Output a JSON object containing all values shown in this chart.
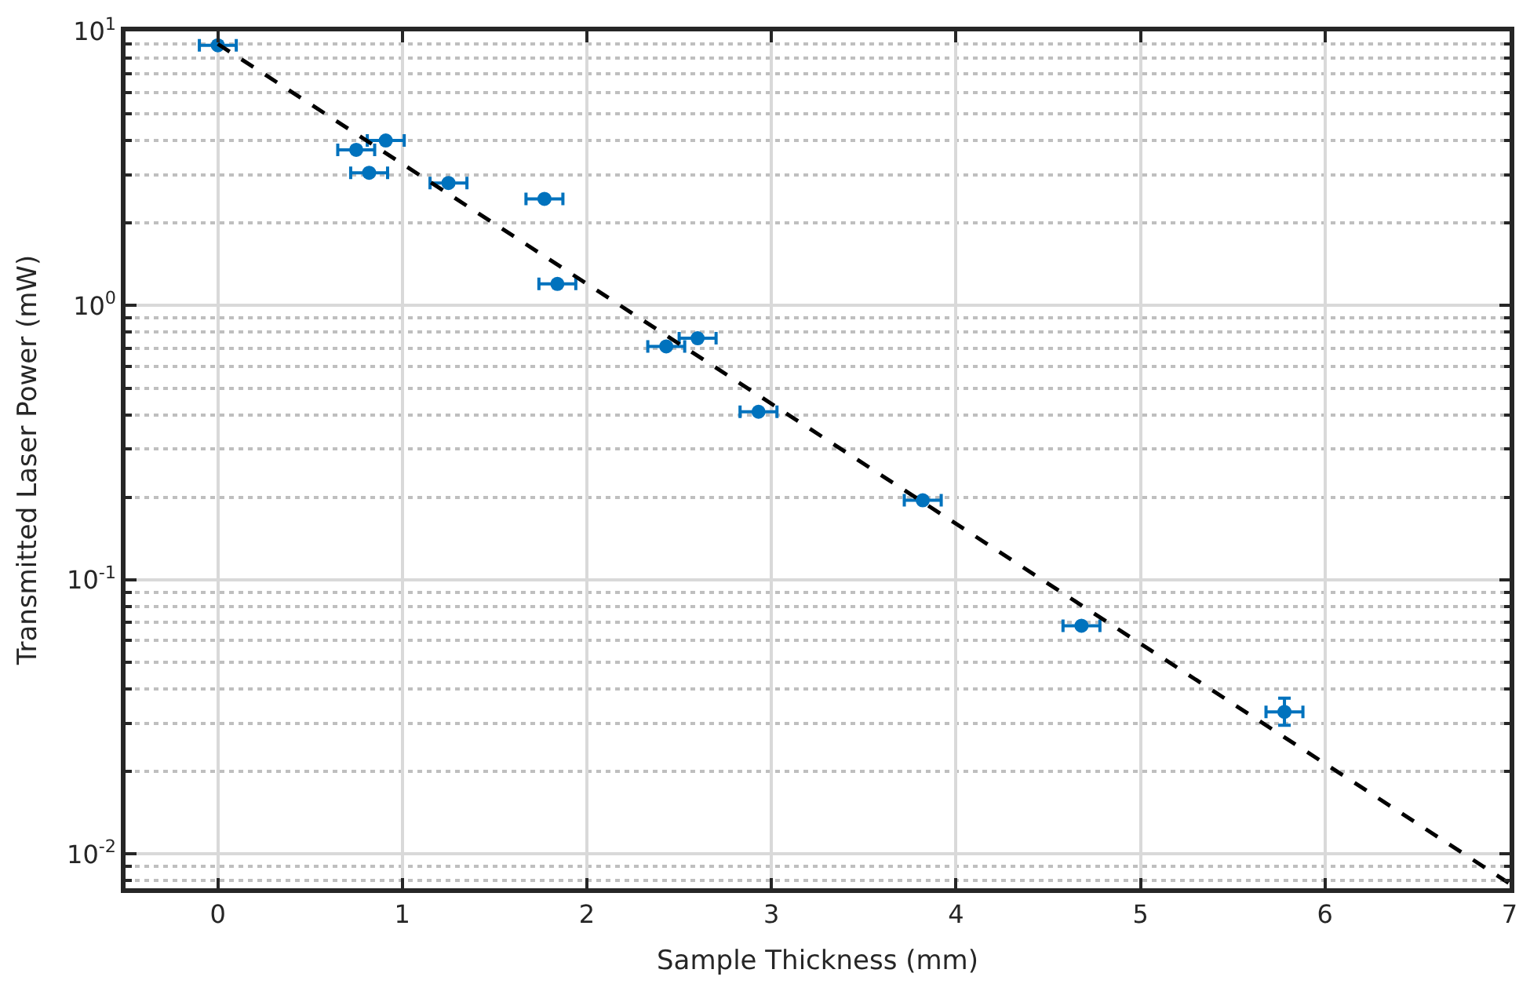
{
  "chart_data": {
    "type": "scatter",
    "xlabel": "Sample Thickness (mm)",
    "ylabel": "Transmitted Laser Power (mW)",
    "log": "y",
    "grid": true,
    "marker": "circle",
    "xlim": [
      -0.5,
      7
    ],
    "xticks": [
      0,
      1,
      2,
      3,
      4,
      5,
      6,
      7
    ],
    "ylim": [
      0.0075,
      10
    ],
    "yticks": [
      {
        "value": 0.01,
        "label": "10$^{-2}$"
      },
      {
        "value": 0.1,
        "label": "10$^{-1}$"
      },
      {
        "value": 1,
        "label": "10$^{0}$"
      },
      {
        "value": 10,
        "label": "10$^{1}$"
      }
    ],
    "series": [
      {
        "color": "#0072bd",
        "x": [
          0,
          0.75,
          0.91,
          0.82,
          1.25,
          1.77,
          1.84,
          2.43,
          2.6,
          2.93,
          3.82,
          4.68,
          5.78
        ],
        "values": [
          8.9,
          3.7,
          4.0,
          3.05,
          2.8,
          2.45,
          1.2,
          0.71,
          0.76,
          0.41,
          0.195,
          0.068,
          0.033
        ],
        "xerrors": [
          0.1,
          0.1,
          0.1,
          0.1,
          0.1,
          0.1,
          0.1,
          0.1,
          0.1,
          0.1,
          0.1,
          0.1,
          0.1
        ],
        "errors": [
          null,
          null,
          null,
          null,
          null,
          null,
          null,
          null,
          null,
          null,
          null,
          null,
          [
            0.0295,
            0.037
          ]
        ]
      },
      {
        "type": "line",
        "color": "#000000",
        "line_style": "dashed",
        "marker": "none",
        "x": [
          0,
          7
        ],
        "values": [
          9,
          0.0078
        ]
      }
    ]
  }
}
